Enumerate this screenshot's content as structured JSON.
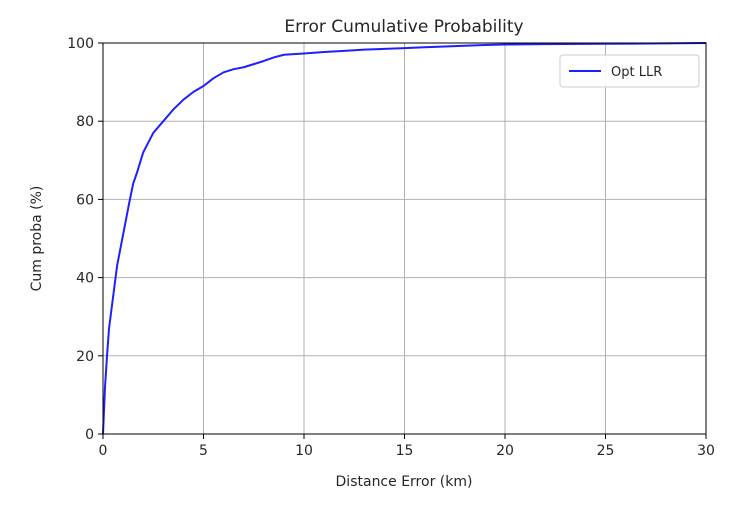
{
  "chart_data": {
    "type": "line",
    "title": "Error Cumulative Probability",
    "xlabel": "Distance Error (km)",
    "ylabel": "Cum proba (%)",
    "xlim": [
      0,
      30
    ],
    "ylim": [
      0,
      100
    ],
    "xticks": [
      0,
      5,
      10,
      15,
      20,
      25,
      30
    ],
    "yticks": [
      0,
      20,
      40,
      60,
      80,
      100
    ],
    "xtick_labels": [
      "0",
      "5",
      "10",
      "15",
      "20",
      "25",
      "30"
    ],
    "ytick_labels": [
      "0",
      "20",
      "40",
      "60",
      "80",
      "100"
    ],
    "grid": true,
    "legend_position": "top-right",
    "series": [
      {
        "name": "Opt LLR",
        "color": "#1f1fff",
        "x": [
          0,
          0.1,
          0.2,
          0.3,
          0.5,
          0.7,
          1.0,
          1.3,
          1.5,
          1.7,
          2.0,
          2.5,
          3.0,
          3.5,
          4.0,
          4.5,
          5.0,
          5.5,
          6.0,
          6.5,
          7.0,
          7.5,
          8.0,
          8.5,
          9.0,
          10.0,
          11.0,
          12.0,
          13.0,
          14.0,
          15.0,
          16.0,
          17.0,
          18.0,
          19.0,
          20.0,
          22.0,
          25.0,
          28.0,
          30.0
        ],
        "y": [
          0,
          12,
          20,
          27,
          35,
          43,
          51,
          59,
          64,
          67,
          72,
          77,
          80,
          83,
          85.5,
          87.5,
          89,
          91,
          92.5,
          93.3,
          93.8,
          94.6,
          95.4,
          96.3,
          97.0,
          97.3,
          97.7,
          98.0,
          98.3,
          98.5,
          98.7,
          98.9,
          99.1,
          99.3,
          99.5,
          99.6,
          99.7,
          99.8,
          99.9,
          100
        ]
      }
    ]
  }
}
